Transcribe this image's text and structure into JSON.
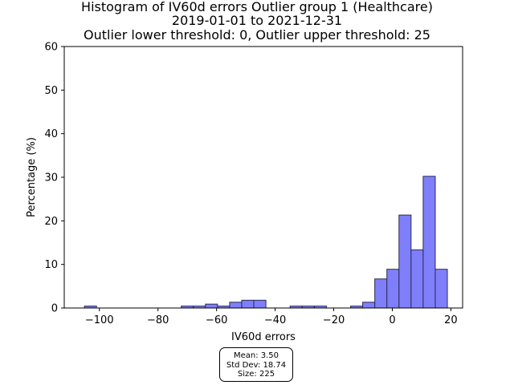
{
  "chart_data": {
    "type": "bar",
    "title": "Histogram of IV60d errors Outlier group 1 (Healthcare)",
    "subtitle": "2019-01-01 to 2021-12-31",
    "subtitle2": "Outlier lower threshold: 0, Outlier upper threshold: 25",
    "xlabel": "IV60d errors",
    "ylabel": "Percentage (%)",
    "xlim": [
      -112,
      24
    ],
    "ylim": [
      0,
      60
    ],
    "xticks": [
      -100,
      -80,
      -60,
      -40,
      -20,
      0,
      20
    ],
    "xtick_labels": [
      "−100",
      "−80",
      "−60",
      "−40",
      "−20",
      "0",
      "20"
    ],
    "yticks": [
      0,
      10,
      20,
      30,
      40,
      50,
      60
    ],
    "ytick_labels": [
      "0",
      "10",
      "20",
      "30",
      "40",
      "50",
      "60"
    ],
    "bin_width": 4.13,
    "bin_edges": [
      -105.1,
      -100.97,
      -96.84,
      -92.71,
      -88.58,
      -84.45,
      -80.32,
      -76.19,
      -72.06,
      -67.93,
      -63.8,
      -59.67,
      -55.54,
      -51.41,
      -47.28,
      -43.15,
      -39.02,
      -34.89,
      -30.76,
      -26.63,
      -22.5,
      -18.37,
      -14.24,
      -10.11,
      -5.98,
      -1.85,
      2.28,
      6.41,
      10.54,
      14.67,
      18.8
    ],
    "values": [
      0.44,
      0,
      0,
      0,
      0,
      0,
      0,
      0,
      0.44,
      0.44,
      0.89,
      0.44,
      1.33,
      1.78,
      1.78,
      0,
      0,
      0.44,
      0.44,
      0.44,
      0,
      0,
      0.44,
      1.33,
      6.67,
      8.89,
      21.33,
      13.33,
      30.22,
      8.89
    ],
    "bar_color": "#7f7ffb",
    "bar_edge_color": "#2b2b55"
  },
  "stats": {
    "mean": "Mean: 3.50",
    "std": "Std Dev: 18.74",
    "size": "Size: 225"
  }
}
